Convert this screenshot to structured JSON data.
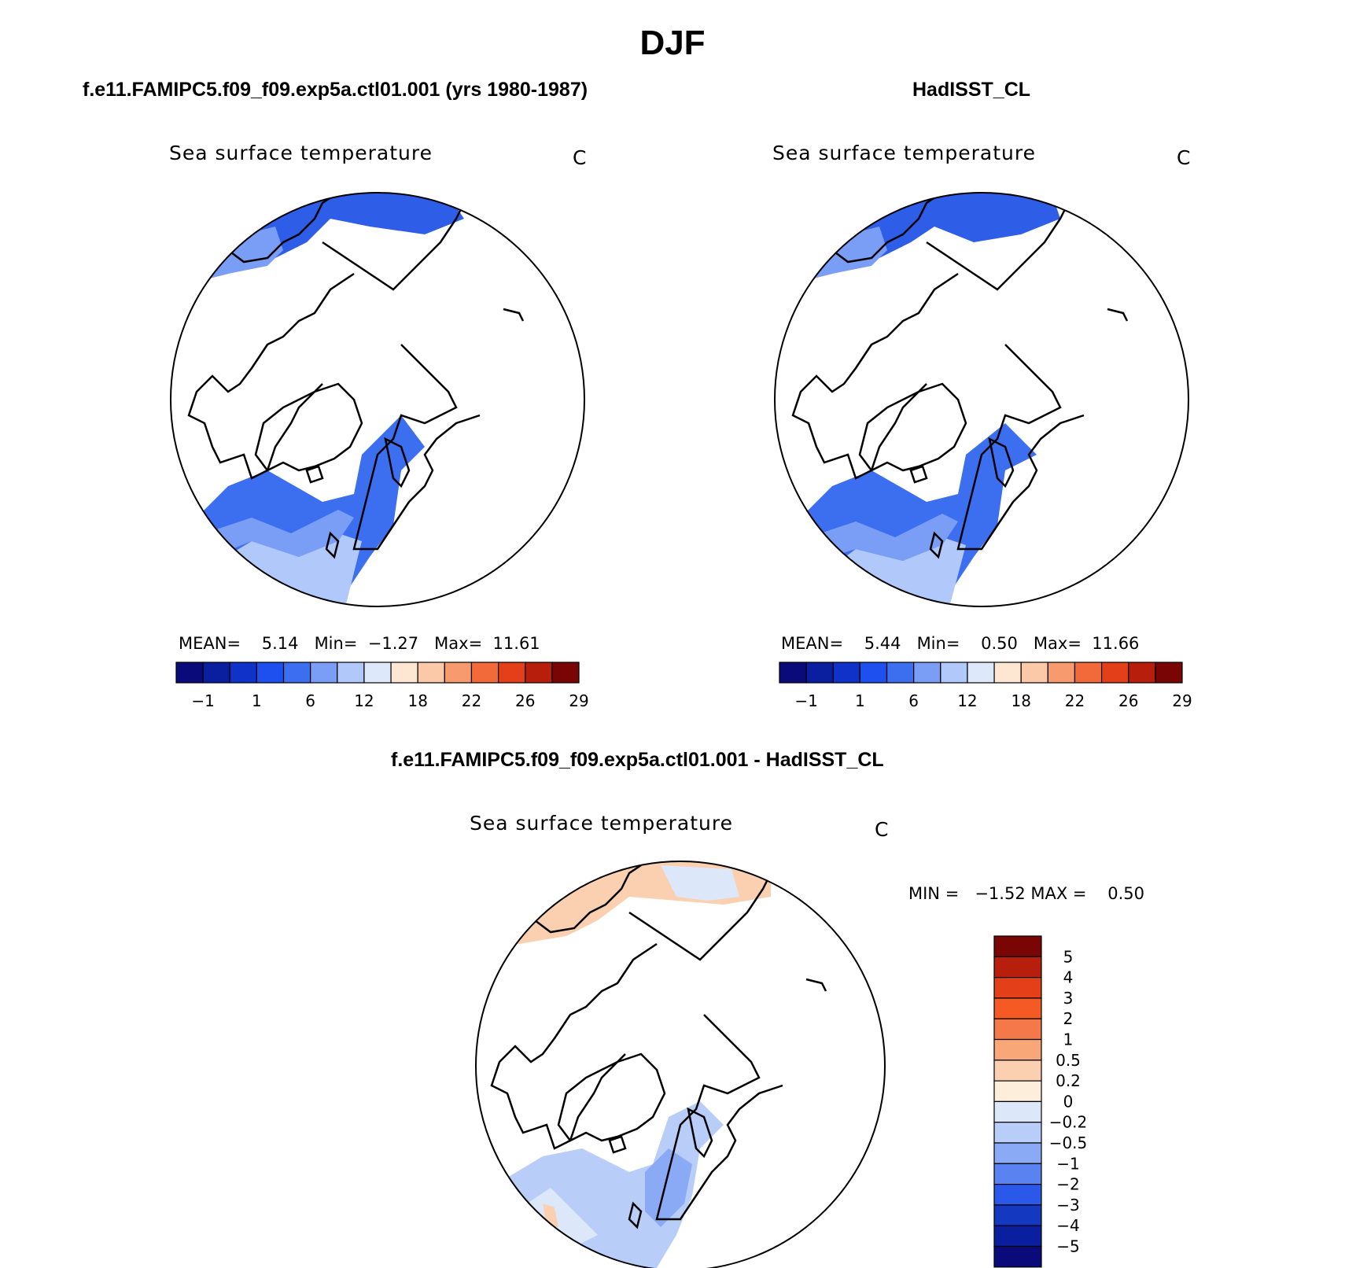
{
  "title": "DJF",
  "panels": [
    {
      "header": "f.e11.FAMIPC5.f09_f09.exp5a.ctl01.001 (yrs 1980-1987)",
      "variable": "Sea surface temperature",
      "units": "C",
      "stats": {
        "mean_label": "MEAN=",
        "mean": "5.14",
        "min_label": "Min=",
        "min": "−1.27",
        "max_label": "Max=",
        "max": "11.61"
      },
      "colorbar": {
        "colors": [
          "#0a0a7a",
          "#0a1fa0",
          "#1032c8",
          "#1e50f0",
          "#3c6ef0",
          "#7a9ef5",
          "#b0c8fa",
          "#dde8fa",
          "#fde6d2",
          "#fbc8a8",
          "#f79a6e",
          "#f26a3a",
          "#e3401a",
          "#b81e0c",
          "#7a0505"
        ],
        "ticks": [
          "−1",
          "1",
          "6",
          "12",
          "18",
          "22",
          "26",
          "29"
        ]
      }
    },
    {
      "header": "HadISST_CL",
      "variable": "Sea surface temperature",
      "units": "C",
      "stats": {
        "mean_label": "MEAN=",
        "mean": "5.44",
        "min_label": "Min=",
        "min": "0.50",
        "max_label": "Max=",
        "max": "11.66"
      },
      "colorbar": {
        "colors": [
          "#0a0a7a",
          "#0a1fa0",
          "#1032c8",
          "#1e50f0",
          "#3c6ef0",
          "#7a9ef5",
          "#b0c8fa",
          "#dde8fa",
          "#fde6d2",
          "#fbc8a8",
          "#f79a6e",
          "#f26a3a",
          "#e3401a",
          "#b81e0c",
          "#7a0505"
        ],
        "ticks": [
          "−1",
          "1",
          "6",
          "12",
          "18",
          "22",
          "26",
          "29"
        ]
      }
    },
    {
      "header": "f.e11.FAMIPC5.f09_f09.exp5a.ctl01.001 - HadISST_CL",
      "variable": "Sea surface temperature",
      "units": "C",
      "stats": {
        "min_label": "MIN =",
        "min": "−1.52",
        "max_label": "MAX =",
        "max": "0.50"
      },
      "colorbar": {
        "colors": [
          "#7a0505",
          "#b81e0c",
          "#e3401a",
          "#f55a24",
          "#f5784a",
          "#f8a878",
          "#fbd0b0",
          "#fdeedc",
          "#dce8fa",
          "#b8cdf8",
          "#8aaaf5",
          "#5a82f0",
          "#2a58e8",
          "#1438c0",
          "#0a1fa0",
          "#0a0a7a"
        ],
        "ticks": [
          "5",
          "4",
          "3",
          "2",
          "1",
          "0.5",
          "0.2",
          "0",
          "−0.2",
          "−0.5",
          "−1",
          "−2",
          "−3",
          "−4",
          "−5"
        ]
      }
    }
  ]
}
